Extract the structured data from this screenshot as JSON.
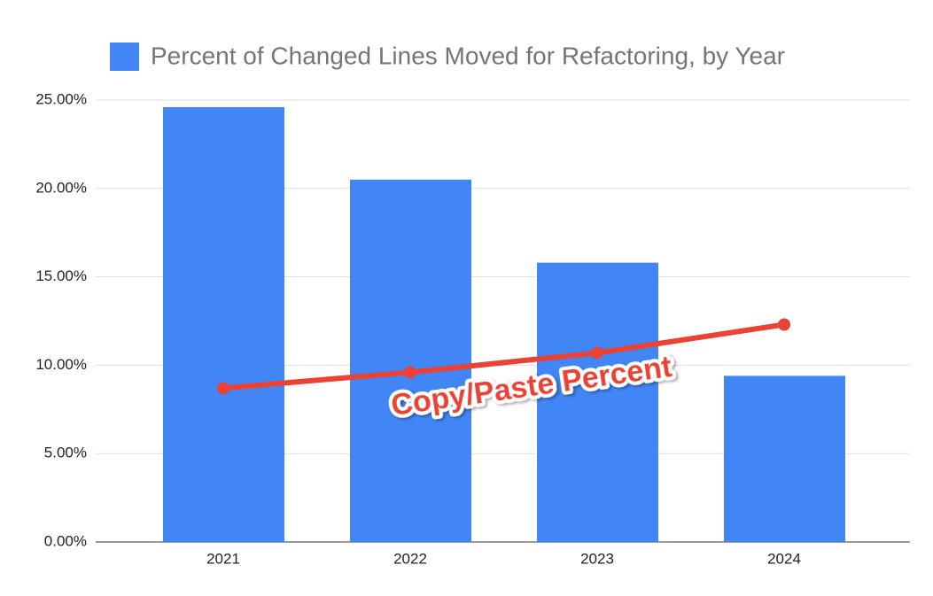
{
  "chart_data": {
    "type": "combo",
    "categories": [
      "2021",
      "2022",
      "2023",
      "2024"
    ],
    "series": [
      {
        "name": "Percent of Changed Lines Moved for Refactoring, by Year",
        "type": "bar",
        "color": "#4285f4",
        "values": [
          24.6,
          20.5,
          15.8,
          9.4
        ]
      },
      {
        "name": "Copy/Paste Percent",
        "type": "line",
        "color": "#ea4335",
        "values": [
          8.7,
          9.6,
          10.7,
          12.3
        ]
      }
    ],
    "ylim": [
      0,
      25
    ],
    "yticks": [
      {
        "value": 0,
        "label": "0.00%"
      },
      {
        "value": 5,
        "label": "5.00%"
      },
      {
        "value": 10,
        "label": "10.00%"
      },
      {
        "value": 15,
        "label": "15.00%"
      },
      {
        "value": 20,
        "label": "20.00%"
      },
      {
        "value": 25,
        "label": "25.00%"
      }
    ],
    "grid": true
  }
}
